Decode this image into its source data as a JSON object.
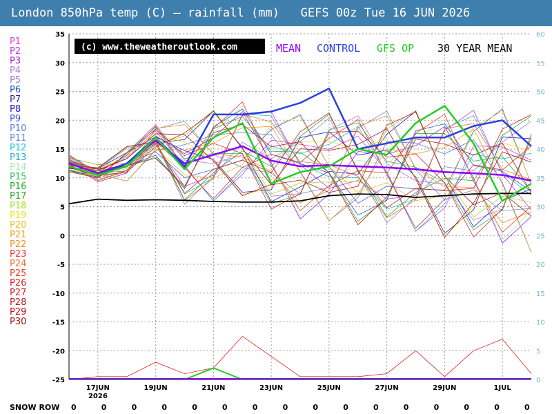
{
  "header": {
    "title": "London 850hPa temp (C) — rainfall (mm)   GEFS 00z Tue 16 JUN 2026"
  },
  "copyright": "(c) www.theweatheroutlook.com",
  "legend_labels": {
    "mean": "MEAN",
    "control": "CONTROL",
    "op": "GFS OP",
    "climo": "30 YEAR MEAN"
  },
  "colors": {
    "title_bar": "#3f7fae",
    "mean": "#8a00ff",
    "control": "#2a3fe0",
    "op": "#22cc22",
    "climo": "#000000",
    "rain_axis": "#7fb3c8",
    "grid": "#9a9a9a"
  },
  "members": [
    {
      "name": "P1",
      "color": "#e23cd6"
    },
    {
      "name": "P2",
      "color": "#d42ee0"
    },
    {
      "name": "P3",
      "color": "#a020f0"
    },
    {
      "name": "P4",
      "color": "#c070e8"
    },
    {
      "name": "P5",
      "color": "#9a7fcf"
    },
    {
      "name": "P6",
      "color": "#2a4fc8"
    },
    {
      "name": "P7",
      "color": "#2222aa"
    },
    {
      "name": "P8",
      "color": "#1a1ad0"
    },
    {
      "name": "P9",
      "color": "#3a5fe8"
    },
    {
      "name": "P10",
      "color": "#5a7fe8"
    },
    {
      "name": "P11",
      "color": "#6a8fd8"
    },
    {
      "name": "P12",
      "color": "#18c8e8"
    },
    {
      "name": "P13",
      "color": "#20b0c8"
    },
    {
      "name": "P14",
      "color": "#a8e8b8"
    },
    {
      "name": "P15",
      "color": "#30c060"
    },
    {
      "name": "P16",
      "color": "#28b028"
    },
    {
      "name": "P17",
      "color": "#30a830"
    },
    {
      "name": "P18",
      "color": "#a8e020"
    },
    {
      "name": "P19",
      "color": "#e8e020"
    },
    {
      "name": "P20",
      "color": "#f0c020"
    },
    {
      "name": "P21",
      "color": "#f0a020"
    },
    {
      "name": "P22",
      "color": "#f09020"
    },
    {
      "name": "P23",
      "color": "#e83030"
    },
    {
      "name": "P24",
      "color": "#f07030"
    },
    {
      "name": "P25",
      "color": "#e84020"
    },
    {
      "name": "P26",
      "color": "#e02020"
    },
    {
      "name": "P27",
      "color": "#d02020"
    },
    {
      "name": "P28",
      "color": "#c01818"
    },
    {
      "name": "P29",
      "color": "#b81010"
    },
    {
      "name": "P30",
      "color": "#a81010"
    }
  ],
  "snow_row": {
    "label": "SNOW ROW",
    "values": [
      "0",
      "0",
      "0",
      "0",
      "0",
      "0",
      "0",
      "0",
      "0",
      "0",
      "0",
      "0",
      "0",
      "0",
      "0",
      "0"
    ]
  },
  "chart_data": {
    "type": "line",
    "title": "London 850hPa temp (C) — rainfall (mm)   GEFS 00z Tue 16 JUN 2026",
    "x_start": "2026-06-16",
    "x_end": "2026-07-02",
    "x_tick_labels": [
      "17JUN",
      "19JUN",
      "21JUN",
      "23JUN",
      "25JUN",
      "27JUN",
      "29JUN",
      "1JUL"
    ],
    "x_tick_year": "2026",
    "y_left": {
      "label": "850hPa temp (C)",
      "range": [
        -25,
        35
      ],
      "ticks": [
        35,
        30,
        25,
        20,
        15,
        10,
        5,
        0,
        -5,
        -10,
        -15,
        -20,
        -25
      ]
    },
    "y_right": {
      "label": "rainfall (mm)",
      "range": [
        0,
        60
      ],
      "ticks": [
        60,
        55,
        50,
        45,
        40,
        35,
        30,
        25,
        20,
        15,
        10,
        5,
        0
      ]
    },
    "grid": true,
    "series": [
      {
        "name": "MEAN",
        "color": "#8a00ff",
        "x": [
          "2026-06-16",
          "2026-06-17",
          "2026-06-18",
          "2026-06-19",
          "2026-06-20",
          "2026-06-21",
          "2026-06-22",
          "2026-06-23",
          "2026-06-24",
          "2026-06-25",
          "2026-06-26",
          "2026-06-27",
          "2026-06-28",
          "2026-06-29",
          "2026-06-30",
          "2026-07-01",
          "2026-07-02"
        ],
        "y": [
          12.5,
          10.8,
          12.5,
          16.5,
          12.5,
          14.0,
          15.5,
          13.0,
          12.0,
          12.2,
          12.0,
          11.8,
          11.5,
          11.0,
          10.8,
          10.5,
          9.5
        ]
      },
      {
        "name": "CONTROL",
        "color": "#2a3fe0",
        "x": [
          "2026-06-16",
          "2026-06-17",
          "2026-06-18",
          "2026-06-19",
          "2026-06-20",
          "2026-06-21",
          "2026-06-22",
          "2026-06-23",
          "2026-06-24",
          "2026-06-25",
          "2026-06-26",
          "2026-06-27",
          "2026-06-28",
          "2026-06-29",
          "2026-06-30",
          "2026-07-01",
          "2026-07-02"
        ],
        "y": [
          12.0,
          10.5,
          12.5,
          17.0,
          12.0,
          21.0,
          21.0,
          21.5,
          23.0,
          25.5,
          15.0,
          16.0,
          17.0,
          17.0,
          19.0,
          20.0,
          15.5
        ]
      },
      {
        "name": "GFS OP",
        "color": "#22cc22",
        "x": [
          "2026-06-16",
          "2026-06-17",
          "2026-06-18",
          "2026-06-19",
          "2026-06-20",
          "2026-06-21",
          "2026-06-22",
          "2026-06-23",
          "2026-06-24",
          "2026-06-25",
          "2026-06-26",
          "2026-06-27",
          "2026-06-28",
          "2026-06-29",
          "2026-06-30",
          "2026-07-01",
          "2026-07-02"
        ],
        "y": [
          12.0,
          10.5,
          12.0,
          17.0,
          11.5,
          17.0,
          19.5,
          9.0,
          11.0,
          12.0,
          15.0,
          14.0,
          19.5,
          22.5,
          16.0,
          6.0,
          9.0
        ]
      },
      {
        "name": "30 YEAR MEAN",
        "color": "#000000",
        "x": [
          "2026-06-16",
          "2026-06-17",
          "2026-06-18",
          "2026-06-19",
          "2026-06-20",
          "2026-06-21",
          "2026-06-22",
          "2026-06-23",
          "2026-06-24",
          "2026-06-25",
          "2026-06-26",
          "2026-06-27",
          "2026-06-28",
          "2026-06-29",
          "2026-06-30",
          "2026-07-01",
          "2026-07-02"
        ],
        "y": [
          5.5,
          6.3,
          6.1,
          6.2,
          6.1,
          5.9,
          5.8,
          5.8,
          6.0,
          6.9,
          7.2,
          7.1,
          6.6,
          6.9,
          7.2,
          7.3,
          7.3
        ]
      }
    ],
    "rainfall_mm": {
      "x": [
        "2026-06-16",
        "2026-06-17",
        "2026-06-18",
        "2026-06-19",
        "2026-06-20",
        "2026-06-21",
        "2026-06-22",
        "2026-06-23",
        "2026-06-24",
        "2026-06-25",
        "2026-06-26",
        "2026-06-27",
        "2026-06-28",
        "2026-06-29",
        "2026-06-30",
        "2026-07-01",
        "2026-07-02"
      ],
      "max": [
        0,
        0.5,
        0.5,
        3,
        1,
        2,
        7.5,
        4,
        0.5,
        0.5,
        0.5,
        1,
        5,
        0.5,
        5,
        7,
        1
      ],
      "op": [
        0,
        0,
        0,
        0,
        0,
        2,
        0,
        0,
        0,
        0,
        0,
        0,
        0,
        0,
        0,
        0,
        0
      ]
    }
  }
}
